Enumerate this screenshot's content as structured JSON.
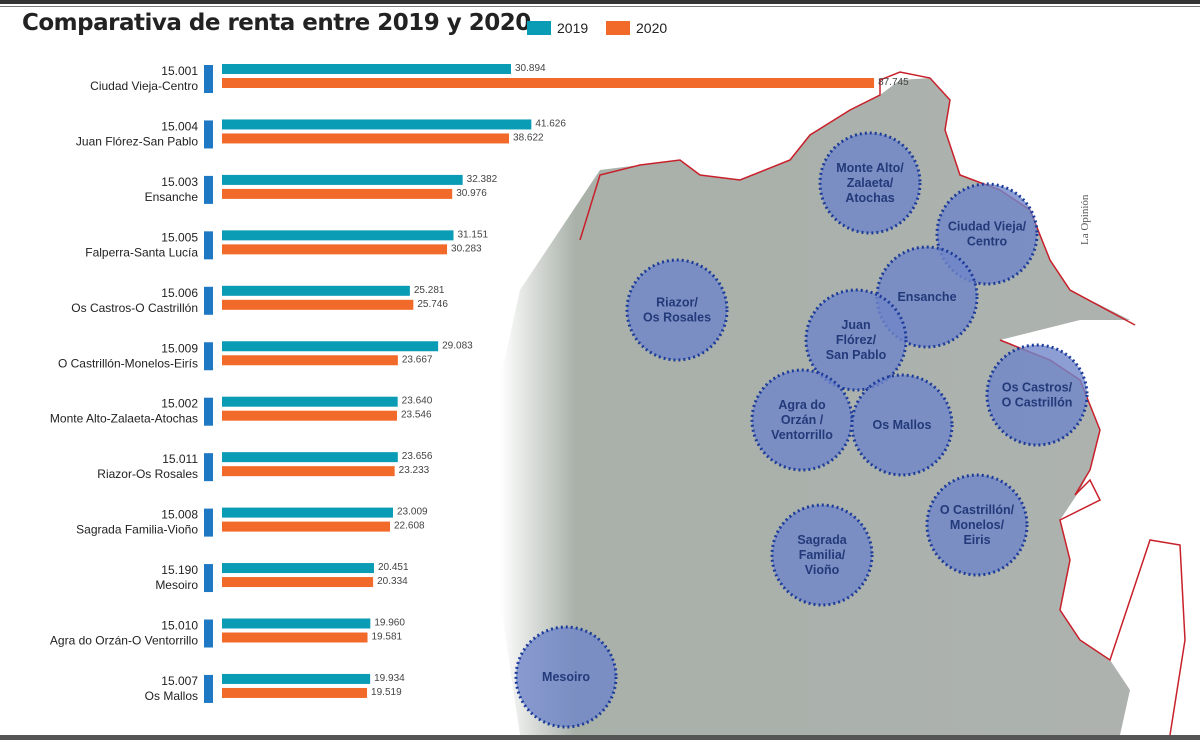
{
  "title": "Comparativa de renta entre 2019 y 2020",
  "credit": "La Opinión",
  "colors": {
    "s2019": "#0a9bb5",
    "s2020": "#f26a2a",
    "marker": "#1f78c4",
    "circle": "#6f86c9",
    "border": "#c8202a"
  },
  "chart_data": {
    "type": "bar",
    "orientation": "horizontal",
    "title": "Comparativa de renta entre 2019 y 2020",
    "legend_position": "top",
    "xlim": [
      0,
      90000
    ],
    "categories": [
      {
        "code": "15.001",
        "name": "Ciudad Vieja-Centro"
      },
      {
        "code": "15.004",
        "name": "Juan Flórez-San Pablo"
      },
      {
        "code": "15.003",
        "name": "Ensanche"
      },
      {
        "code": "15.005",
        "name": "Falperra-Santa Lucía"
      },
      {
        "code": "15.006",
        "name": "Os Castros-O Castrillón"
      },
      {
        "code": "15.009",
        "name": "O Castrillón-Monelos-Eirís"
      },
      {
        "code": "15.002",
        "name": "Monte Alto-Zalaeta-Atochas"
      },
      {
        "code": "15.011",
        "name": "Riazor-Os Rosales"
      },
      {
        "code": "15.008",
        "name": "Sagrada Familia-Vioño"
      },
      {
        "code": "15.190",
        "name": "Mesoiro"
      },
      {
        "code": "15.010",
        "name": "Agra do Orzán-O Ventorrillo"
      },
      {
        "code": "15.007",
        "name": "Os Mallos"
      }
    ],
    "series": [
      {
        "name": "2019",
        "values": [
          30894,
          41626,
          32382,
          31151,
          25281,
          29083,
          23640,
          23656,
          23009,
          20451,
          19960,
          19934
        ],
        "labels": [
          "30.894",
          "41.626",
          "32.382",
          "31.151",
          "25.281",
          "29.083",
          "23.640",
          "23.656",
          "23.009",
          "20.451",
          "19.960",
          "19.934"
        ]
      },
      {
        "name": "2020",
        "values": [
          87745,
          38622,
          30976,
          30283,
          25746,
          23667,
          23546,
          23233,
          22608,
          20334,
          19581,
          19519
        ],
        "labels": [
          "87.745",
          "38.622",
          "30.976",
          "30.283",
          "25.746",
          "23.667",
          "23.546",
          "23.233",
          "22.608",
          "20.334",
          "19.581",
          "19.519"
        ]
      }
    ]
  },
  "map_labels": [
    {
      "lines": [
        "Monte Alto/",
        "Zalaeta/",
        "Atochas"
      ]
    },
    {
      "lines": [
        "Ciudad Vieja/",
        "Centro"
      ]
    },
    {
      "lines": [
        "Riazor/",
        "Os Rosales"
      ]
    },
    {
      "lines": [
        "Ensanche"
      ]
    },
    {
      "lines": [
        "Juan",
        "Flórez/",
        "San Pablo"
      ]
    },
    {
      "lines": [
        "Os Castros/",
        "O Castrillón"
      ]
    },
    {
      "lines": [
        "Agra do",
        "Orzán /",
        "Ventorrillo"
      ]
    },
    {
      "lines": [
        "Os Mallos"
      ]
    },
    {
      "lines": [
        "O Castrillón/",
        "Monelos/",
        "Eiris"
      ]
    },
    {
      "lines": [
        "Sagrada",
        "Familia/",
        "Vioño"
      ]
    },
    {
      "lines": [
        "Mesoiro"
      ]
    }
  ]
}
